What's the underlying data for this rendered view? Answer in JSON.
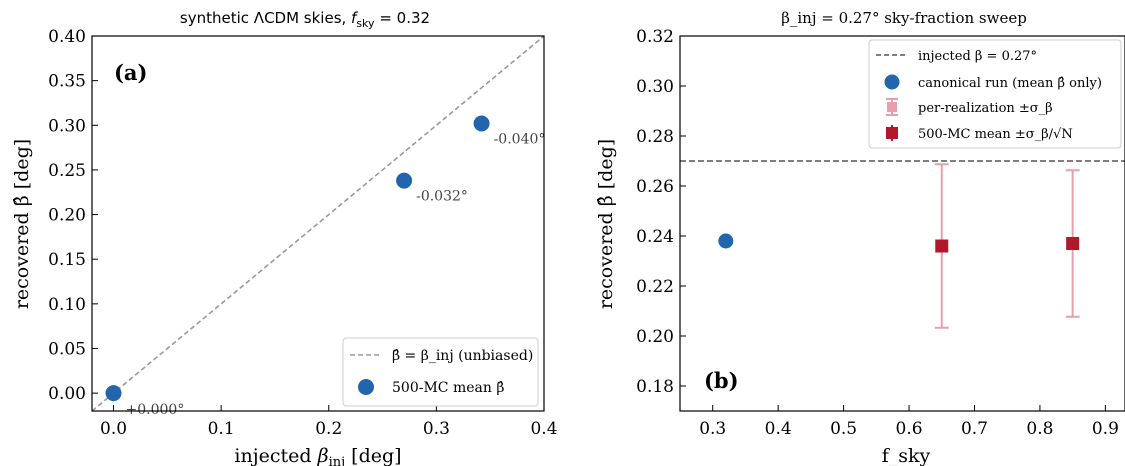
{
  "colors": {
    "blue": "#2166ac",
    "red": "#b2182b",
    "red_light": "#e6a0ab",
    "diag": "#999999",
    "hline": "#555555",
    "axis": "#000000"
  },
  "chart_data": [
    {
      "type": "scatter",
      "title": "synthetic ΛCDM skies, f_sky = 0.32",
      "title_parts": [
        "synthetic ΛCDM skies, ",
        "f",
        "sky",
        " = 0.32"
      ],
      "xlabel": "injected β_inj [deg]",
      "xlabel_parts": [
        "injected ",
        "β",
        "inj",
        " [deg]"
      ],
      "ylabel": "recovered β̂ [deg]",
      "panel_label": "(a)",
      "xlim": [
        -0.02,
        0.4
      ],
      "ylim": [
        -0.02,
        0.4
      ],
      "xticks": [
        0.0,
        0.1,
        0.2,
        0.3,
        0.4
      ],
      "xtick_labels": [
        "0.0",
        "0.1",
        "0.2",
        "0.3",
        "0.4"
      ],
      "yticks": [
        0.0,
        0.05,
        0.1,
        0.15,
        0.2,
        0.25,
        0.3,
        0.35,
        0.4
      ],
      "ytick_labels": [
        "0.00",
        "0.05",
        "0.10",
        "0.15",
        "0.20",
        "0.25",
        "0.30",
        "0.35",
        "0.40"
      ],
      "grid": false,
      "legend_position": "bottom-right",
      "legend": [
        {
          "label": "β̂ = β_inj (unbiased)",
          "kind": "dashed-line"
        },
        {
          "label": "500-MC mean β̂",
          "kind": "marker"
        }
      ],
      "series": [
        {
          "name": "500-MC mean β̂",
          "x": [
            0.0,
            0.27,
            0.342
          ],
          "y": [
            0.0,
            0.238,
            0.302
          ],
          "annotations": [
            "+0.000°",
            "-0.032°",
            "-0.040°"
          ]
        }
      ],
      "reference_line": {
        "type": "diagonal",
        "label": "β̂ = β_inj (unbiased)"
      }
    },
    {
      "type": "scatter",
      "title": "β_inj = 0.27° sky-fraction sweep",
      "xlabel": "f_sky",
      "ylabel": "recovered β̂ [deg]",
      "panel_label": "(b)",
      "xlim": [
        0.25,
        0.93
      ],
      "ylim": [
        0.17,
        0.32
      ],
      "xticks": [
        0.3,
        0.4,
        0.5,
        0.6,
        0.7,
        0.8,
        0.9
      ],
      "xtick_labels": [
        "0.3",
        "0.4",
        "0.5",
        "0.6",
        "0.7",
        "0.8",
        "0.9"
      ],
      "yticks": [
        0.18,
        0.2,
        0.22,
        0.24,
        0.26,
        0.28,
        0.3,
        0.32
      ],
      "ytick_labels": [
        "0.18",
        "0.20",
        "0.22",
        "0.24",
        "0.26",
        "0.28",
        "0.30",
        "0.32"
      ],
      "grid": false,
      "legend_position": "top-right",
      "legend": [
        {
          "label": "injected β = 0.27°",
          "kind": "dashed-line"
        },
        {
          "label": "canonical run (mean β̂ only)",
          "kind": "circle"
        },
        {
          "label": "per-realization ±σ_β",
          "kind": "errorbar-light"
        },
        {
          "label": "500-MC mean ±σ_β/√N",
          "kind": "square"
        }
      ],
      "reference_line": {
        "type": "horizontal",
        "y": 0.27,
        "label": "injected β = 0.27°"
      },
      "series": [
        {
          "name": "canonical run (mean β̂ only)",
          "x": [
            0.32
          ],
          "y": [
            0.238
          ]
        },
        {
          "name": "per-realization ±σ_β",
          "x": [
            0.65,
            0.85
          ],
          "y": [
            0.236,
            0.237
          ],
          "yerr": [
            0.0327,
            0.0293
          ]
        },
        {
          "name": "500-MC mean ±σ_β/√N",
          "x": [
            0.65,
            0.85
          ],
          "y": [
            0.236,
            0.237
          ]
        }
      ]
    }
  ]
}
